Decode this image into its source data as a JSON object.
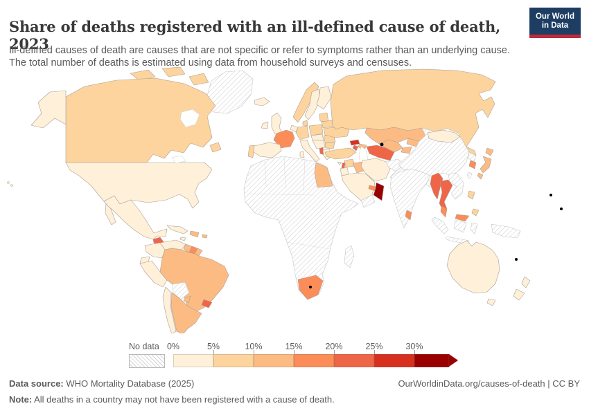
{
  "header": {
    "title": "Share of deaths registered with an ill-defined cause of death, 2023",
    "subtitle": "Ill-defined causes of death are causes that are not specific or refer to symptoms rather than an underlying cause. The total number of deaths is estimated using data from household surveys and censuses.",
    "logo": {
      "line1": "Our World",
      "line2": "in Data"
    }
  },
  "footer": {
    "source_label": "Data source:",
    "source_text": " WHO Mortality Database (2025)",
    "right_text": "OurWorldinData.org/causes-of-death | CC BY",
    "note_label": "Note:",
    "note_text": " All deaths in a country may not have been registered with a cause of death."
  },
  "chart_data": {
    "type": "choropleth",
    "title": "Share of deaths registered with an ill-defined cause of death",
    "year": 2023,
    "unit": "%",
    "legend": {
      "no_data_label": "No data",
      "tick_labels": [
        "0%",
        "5%",
        "10%",
        "15%",
        "20%",
        "25%",
        "30%"
      ],
      "bin_edges": [
        0,
        5,
        10,
        15,
        20,
        25,
        30
      ],
      "bin_width_percent": 5,
      "colors": [
        "#FEF0D9",
        "#FDD49E",
        "#FDBB84",
        "#FC8D59",
        "#EF6548",
        "#D7301F",
        "#990000"
      ],
      "open_ended_color": "#990000"
    },
    "countries": {
      "Canada": 7,
      "United States": 4,
      "Greenland": null,
      "Mexico": 3,
      "Guatemala": 21,
      "Honduras": 4,
      "Cuba": 3,
      "Jamaica": 3,
      "Dominican Republic": 12,
      "Puerto Rico": 12,
      "Colombia": 3,
      "Venezuela": 4,
      "Guyana": 12,
      "Suriname": 16,
      "French Guiana": 12,
      "Ecuador": 3,
      "Peru": 4,
      "Brazil": 12,
      "Bolivia": null,
      "Paraguay": 12,
      "Uruguay": 21,
      "Argentina": 12,
      "Chile": 3,
      "Iceland": 3,
      "Ireland": 4,
      "United Kingdom": 4,
      "Portugal": 8,
      "Spain": 3,
      "France": 16,
      "Belgium-Netherlands": 4,
      "Germany": 6,
      "Denmark": 6,
      "Norway": 7,
      "Sweden": 3,
      "Finland": 2,
      "Baltic states": 7,
      "Poland": 7,
      "Czechia-Slovakia-Hungary": 4,
      "Ukraine": 7,
      "Belarus": 6,
      "Romania": 7,
      "Bulgaria": 7,
      "Serbia-Croatia": 4,
      "Albania": 22,
      "Greece": 3,
      "Italy": 2,
      "Russia": 7,
      "Kazakhstan": 12,
      "Uzbekistan": 11,
      "Turkmenistan": 21,
      "Kyrgyzstan": 12,
      "Tajikistan": 12,
      "Georgia": 26,
      "Azerbaijan": 11,
      "Armenia": 21,
      "Turkey": 7,
      "Cyprus": 3,
      "Syria": 8,
      "Lebanon": 22,
      "Israel-Jordan": 3,
      "Iraq": 11,
      "Iran": 4,
      "Saudi Arabia": 3,
      "Yemen": null,
      "Oman": 31,
      "United Arab Emirates": 16,
      "Egypt": 13,
      "Africa (most countries)": null,
      "South Africa": 16,
      "Madagascar": null,
      "Afghanistan": null,
      "Pakistan": null,
      "India": null,
      "Sri Lanka": 16,
      "Bangladesh": null,
      "China": null,
      "Mongolia": 4,
      "Taiwan": null,
      "North Korea": null,
      "South Korea": 16,
      "Japan": 14,
      "Myanmar": 23,
      "Thailand": 24,
      "Vietnam-Laos-Cambodia": null,
      "Malaysia": 16,
      "Philippines": 6,
      "Indonesia": null,
      "Papua New Guinea": null,
      "Australia": 3,
      "New Zealand": 2
    }
  }
}
